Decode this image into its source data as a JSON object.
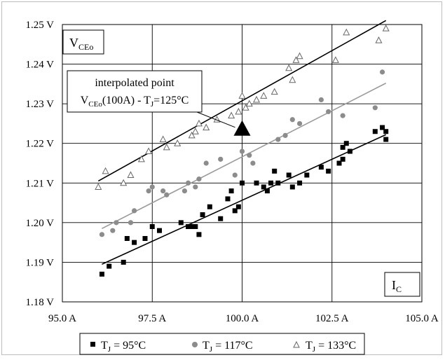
{
  "chart_data": {
    "type": "scatter",
    "x_ticks": [
      "95.0 A",
      "97.5 A",
      "100.0 A",
      "102.5 A",
      "105.0 A"
    ],
    "y_ticks": [
      "1.18 V",
      "1.19 V",
      "1.20 V",
      "1.21 V",
      "1.22 V",
      "1.23 V",
      "1.24 V",
      "1.25 V"
    ],
    "xlim": [
      95,
      105
    ],
    "ylim": [
      1.18,
      1.25
    ],
    "grid": true,
    "legend_position": "bottom",
    "y_quantity": {
      "main": "V",
      "sub": "CEo"
    },
    "x_quantity": {
      "main": "I",
      "sub": "C"
    },
    "annotation": {
      "line1": "interpolated point",
      "line2_main": "V",
      "line2_sub1": "CEo",
      "line2_mid": "(100A) - T",
      "line2_sub2": "J",
      "line2_end": "=125°C",
      "point": [
        100,
        1.2237
      ],
      "color": "#000000"
    },
    "series": [
      {
        "name_main": "T",
        "name_sub": "J",
        "name_end": " = 95°C",
        "marker": "square",
        "color": "#000000",
        "points": [
          [
            96.1,
            1.187
          ],
          [
            96.3,
            1.189
          ],
          [
            96.7,
            1.19
          ],
          [
            96.8,
            1.196
          ],
          [
            97.0,
            1.195
          ],
          [
            97.3,
            1.196
          ],
          [
            97.5,
            1.199
          ],
          [
            97.7,
            1.198
          ],
          [
            98.3,
            1.2
          ],
          [
            98.5,
            1.199
          ],
          [
            98.6,
            1.199
          ],
          [
            98.7,
            1.199
          ],
          [
            98.8,
            1.197
          ],
          [
            98.9,
            1.202
          ],
          [
            99.1,
            1.204
          ],
          [
            99.4,
            1.201
          ],
          [
            99.6,
            1.206
          ],
          [
            99.7,
            1.208
          ],
          [
            99.8,
            1.203
          ],
          [
            99.9,
            1.204
          ],
          [
            100.0,
            1.21
          ],
          [
            100.4,
            1.21
          ],
          [
            100.6,
            1.209
          ],
          [
            100.7,
            1.208
          ],
          [
            100.8,
            1.21
          ],
          [
            100.9,
            1.213
          ],
          [
            101.0,
            1.21
          ],
          [
            101.3,
            1.212
          ],
          [
            101.4,
            1.209
          ],
          [
            101.6,
            1.21
          ],
          [
            101.8,
            1.212
          ],
          [
            102.2,
            1.214
          ],
          [
            102.4,
            1.213
          ],
          [
            102.7,
            1.215
          ],
          [
            102.8,
            1.216
          ],
          [
            102.8,
            1.219
          ],
          [
            102.9,
            1.22
          ],
          [
            103.0,
            1.218
          ],
          [
            103.7,
            1.223
          ],
          [
            103.9,
            1.224
          ],
          [
            104.0,
            1.223
          ],
          [
            104.0,
            1.221
          ]
        ],
        "trend": [
          [
            96.1,
            1.1895
          ],
          [
            104.0,
            1.2222
          ]
        ]
      },
      {
        "name_main": "T",
        "name_sub": "J",
        "name_end": " = 117°C",
        "marker": "circle",
        "color": "#8c8c8c",
        "points": [
          [
            96.1,
            1.197
          ],
          [
            96.4,
            1.198
          ],
          [
            96.5,
            1.2
          ],
          [
            96.9,
            1.2
          ],
          [
            97.0,
            1.203
          ],
          [
            97.4,
            1.208
          ],
          [
            97.5,
            1.209
          ],
          [
            97.8,
            1.208
          ],
          [
            97.9,
            1.207
          ],
          [
            98.4,
            1.208
          ],
          [
            98.5,
            1.21
          ],
          [
            98.7,
            1.209
          ],
          [
            98.8,
            1.211
          ],
          [
            99.0,
            1.215
          ],
          [
            99.4,
            1.216
          ],
          [
            99.8,
            1.212
          ],
          [
            100.0,
            1.218
          ],
          [
            100.2,
            1.217
          ],
          [
            100.3,
            1.215
          ],
          [
            101.0,
            1.221
          ],
          [
            101.2,
            1.222
          ],
          [
            101.4,
            1.226
          ],
          [
            101.6,
            1.225
          ],
          [
            102.2,
            1.231
          ],
          [
            102.4,
            1.228
          ],
          [
            102.8,
            1.227
          ],
          [
            103.7,
            1.229
          ],
          [
            103.9,
            1.238
          ]
        ],
        "trend": [
          [
            96.1,
            1.1985
          ],
          [
            104.0,
            1.2352
          ]
        ]
      },
      {
        "name_main": "T",
        "name_sub": "J",
        "name_end": " = 133°C",
        "marker": "triangle",
        "color": "#666666",
        "points": [
          [
            96.0,
            1.209
          ],
          [
            96.2,
            1.213
          ],
          [
            96.7,
            1.21
          ],
          [
            96.9,
            1.212
          ],
          [
            97.2,
            1.216
          ],
          [
            97.4,
            1.218
          ],
          [
            97.8,
            1.221
          ],
          [
            97.9,
            1.219
          ],
          [
            98.2,
            1.22
          ],
          [
            98.6,
            1.222
          ],
          [
            98.7,
            1.223
          ],
          [
            98.8,
            1.225
          ],
          [
            99.0,
            1.224
          ],
          [
            99.3,
            1.226
          ],
          [
            99.7,
            1.227
          ],
          [
            99.9,
            1.228
          ],
          [
            100.0,
            1.232
          ],
          [
            100.1,
            1.229
          ],
          [
            100.2,
            1.23
          ],
          [
            100.4,
            1.231
          ],
          [
            100.6,
            1.232
          ],
          [
            100.9,
            1.233
          ],
          [
            101.3,
            1.239
          ],
          [
            101.4,
            1.236
          ],
          [
            101.5,
            1.241
          ],
          [
            101.6,
            1.242
          ],
          [
            102.6,
            1.241
          ],
          [
            102.9,
            1.248
          ],
          [
            103.8,
            1.246
          ],
          [
            104.0,
            1.249
          ]
        ],
        "trend": [
          [
            96.0,
            1.2105
          ],
          [
            104.0,
            1.251
          ]
        ]
      }
    ]
  }
}
